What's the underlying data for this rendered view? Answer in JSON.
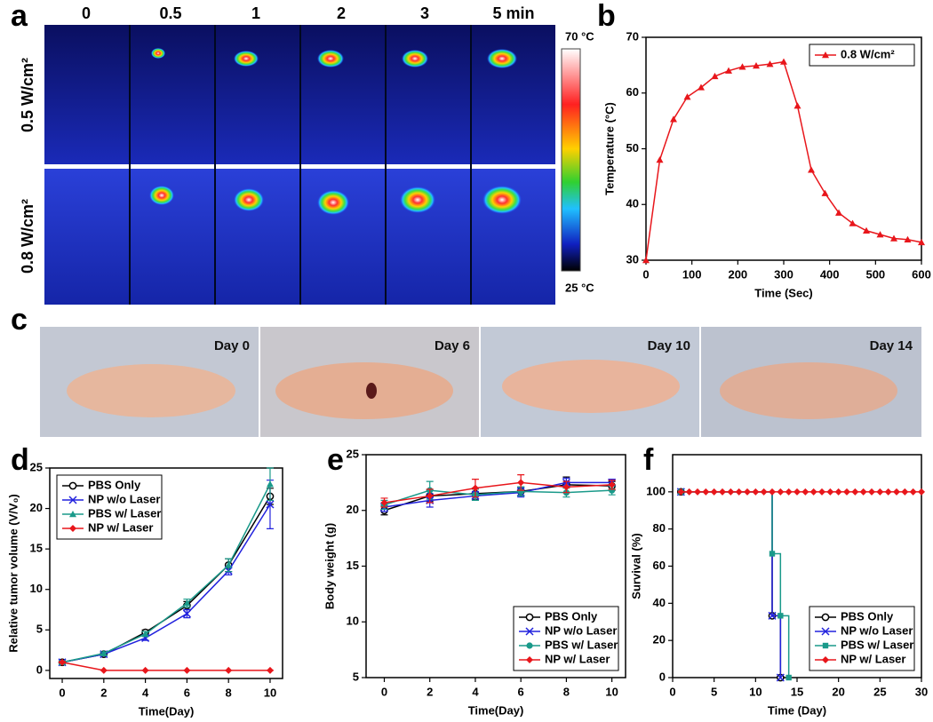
{
  "panel_labels": [
    "a",
    "b",
    "c",
    "d",
    "e",
    "f"
  ],
  "thermal_imaging": {
    "time_labels": [
      "0",
      "0.5",
      "1",
      "2",
      "3",
      "5 min"
    ],
    "power_labels": [
      "0.5 W/cm²",
      "0.8 W/cm²"
    ],
    "scale_max": "70 °C",
    "scale_min": "25 °C"
  },
  "photos": {
    "day_labels": [
      "Day 0",
      "Day 6",
      "Day 10",
      "Day 14"
    ]
  },
  "chart_data": [
    {
      "type": "line",
      "xlabel": "Time (Sec)",
      "ylabel": "Temperature (°C)",
      "x": [
        0,
        30,
        60,
        90,
        120,
        150,
        180,
        210,
        240,
        270,
        300,
        330,
        360,
        390,
        420,
        450,
        480,
        510,
        540,
        570,
        600
      ],
      "xlim": [
        0,
        600
      ],
      "xticks": [
        0,
        100,
        200,
        300,
        400,
        500,
        600
      ],
      "ylim": [
        30,
        70
      ],
      "yticks": [
        30,
        40,
        50,
        60,
        70
      ],
      "legend": "upper right",
      "series": [
        {
          "name": "0.8 W/cm²",
          "color": "#e8161b",
          "marker": "triangle",
          "values": [
            30,
            48,
            55.3,
            59.3,
            61,
            63,
            64,
            64.7,
            64.9,
            65.2,
            65.6,
            57.7,
            46.2,
            42,
            38.5,
            36.6,
            35.3,
            34.6,
            33.9,
            33.7,
            33.2
          ]
        }
      ]
    },
    {
      "type": "line",
      "xlabel": "Time(Day)",
      "ylabel": "Relative tumor volume (V/V₀)",
      "x": [
        0,
        2,
        4,
        6,
        8,
        10
      ],
      "xlim": [
        -0.6,
        10.6
      ],
      "xticks": [
        0,
        2,
        4,
        6,
        8,
        10
      ],
      "ylim": [
        -1,
        25
      ],
      "yticks": [
        0,
        5,
        10,
        15,
        20,
        25
      ],
      "legend": "upper left",
      "series": [
        {
          "name": "PBS Only",
          "color": "#000000",
          "marker": "circle-open",
          "values": [
            1,
            2,
            4.7,
            8,
            13,
            21.5
          ],
          "errors": [
            0.2,
            0.2,
            0.3,
            0.5,
            0.8,
            1
          ]
        },
        {
          "name": "NP w/o Laser",
          "color": "#2222dd",
          "marker": "x",
          "values": [
            1,
            2,
            4,
            7,
            12.3,
            20.5
          ],
          "errors": [
            0.2,
            0.2,
            0.3,
            0.5,
            0.5,
            3
          ]
        },
        {
          "name": "PBS w/ Laser",
          "color": "#1a9a8a",
          "marker": "triangle",
          "values": [
            1,
            2.1,
            4.5,
            8.3,
            13,
            23
          ],
          "errors": [
            0.2,
            0.2,
            0.3,
            0.5,
            0.8,
            2
          ]
        },
        {
          "name": "NP w/ Laser",
          "color": "#e8161b",
          "marker": "diamond",
          "values": [
            1,
            0,
            0,
            0,
            0,
            0
          ],
          "errors": [
            0.1,
            0,
            0,
            0,
            0,
            0
          ]
        }
      ]
    },
    {
      "type": "line",
      "xlabel": "Time(Day)",
      "ylabel": "Body weight (g)",
      "x": [
        0,
        2,
        4,
        6,
        8,
        10
      ],
      "xlim": [
        -0.8,
        10.6
      ],
      "xticks": [
        0,
        2,
        4,
        6,
        8,
        10
      ],
      "ylim": [
        5,
        25
      ],
      "yticks": [
        5,
        10,
        15,
        20,
        25
      ],
      "legend": "lower right",
      "series": [
        {
          "name": "PBS Only",
          "color": "#000000",
          "marker": "circle-open",
          "values": [
            20,
            21.3,
            21.5,
            21.7,
            22.3,
            22.2
          ],
          "errors": [
            0.4,
            0.5,
            0.5,
            0.4,
            0.7,
            0.4
          ]
        },
        {
          "name": "NP w/o Laser",
          "color": "#2222dd",
          "marker": "x",
          "values": [
            20.3,
            20.9,
            21.3,
            21.6,
            22.5,
            22.5
          ],
          "errors": [
            0.4,
            0.6,
            0.4,
            0.4,
            0.4,
            0.3
          ]
        },
        {
          "name": "PBS w/ Laser",
          "color": "#1a9a8a",
          "marker": "circle",
          "values": [
            20.5,
            21.8,
            21.4,
            21.7,
            21.6,
            21.8
          ],
          "errors": [
            0.4,
            0.8,
            0.5,
            0.4,
            0.4,
            0.4
          ]
        },
        {
          "name": "NP w/ Laser",
          "color": "#e8161b",
          "marker": "diamond",
          "values": [
            20.7,
            21.3,
            22,
            22.5,
            22.1,
            22.3
          ],
          "errors": [
            0.4,
            0.6,
            0.8,
            0.7,
            0.5,
            0.4
          ]
        }
      ]
    },
    {
      "type": "step",
      "xlabel": "Time (Day)",
      "ylabel": "Survival (%)",
      "xlim": [
        0,
        30
      ],
      "xticks": [
        0,
        5,
        10,
        15,
        20,
        25,
        30
      ],
      "ylim": [
        0,
        120
      ],
      "yticks": [
        0,
        20,
        40,
        60,
        80,
        100
      ],
      "legend": "lower right",
      "series": [
        {
          "name": "PBS Only",
          "color": "#000000",
          "marker": "circle-open",
          "x": [
            1,
            12,
            13
          ],
          "values": [
            100,
            33.3,
            0
          ]
        },
        {
          "name": "NP w/o Laser",
          "color": "#2222dd",
          "marker": "x",
          "x": [
            1,
            12,
            13
          ],
          "values": [
            100,
            33.3,
            0
          ]
        },
        {
          "name": "PBS w/ Laser",
          "color": "#1a9a8a",
          "marker": "square",
          "x": [
            1,
            12,
            13,
            14
          ],
          "values": [
            100,
            66.7,
            33.3,
            0
          ]
        },
        {
          "name": "NP w/ Laser",
          "color": "#e8161b",
          "marker": "diamond",
          "x": [
            1,
            2,
            3,
            4,
            5,
            6,
            7,
            8,
            9,
            10,
            11,
            12,
            13,
            14,
            15,
            16,
            17,
            18,
            19,
            20,
            21,
            22,
            23,
            24,
            25,
            26,
            27,
            28,
            29,
            30
          ],
          "values": [
            100,
            100,
            100,
            100,
            100,
            100,
            100,
            100,
            100,
            100,
            100,
            100,
            100,
            100,
            100,
            100,
            100,
            100,
            100,
            100,
            100,
            100,
            100,
            100,
            100,
            100,
            100,
            100,
            100,
            100
          ]
        }
      ]
    }
  ]
}
